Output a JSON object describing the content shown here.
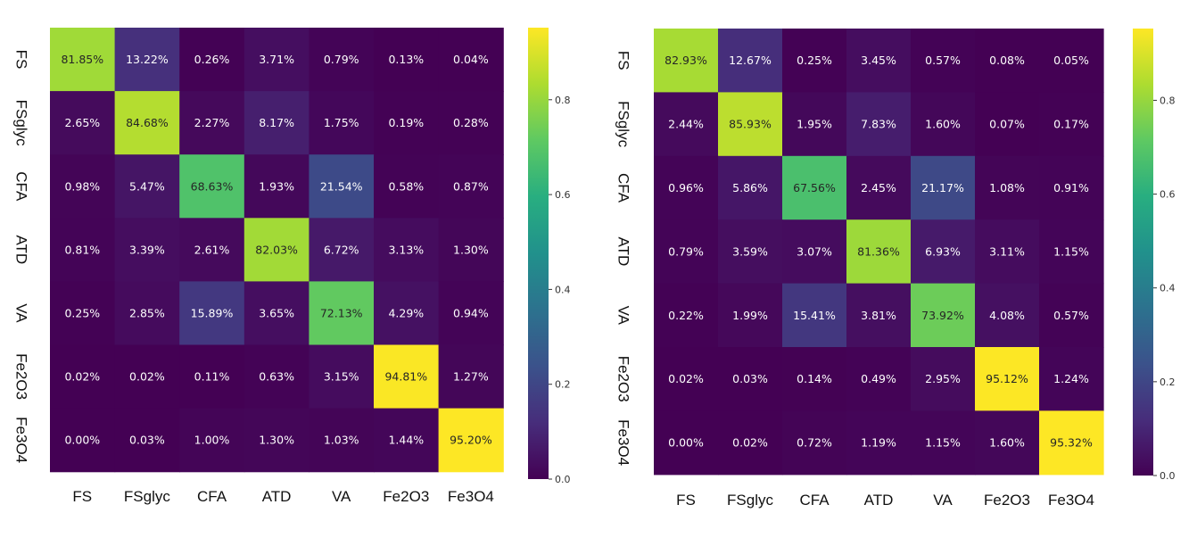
{
  "chart_data": [
    {
      "type": "heatmap",
      "categories": [
        "FS",
        "FSglyc",
        "CFA",
        "ATD",
        "VA",
        "Fe2O3",
        "Fe3O4"
      ],
      "values": [
        [
          81.85,
          13.22,
          0.26,
          3.71,
          0.79,
          0.13,
          0.04
        ],
        [
          2.65,
          84.68,
          2.27,
          8.17,
          1.75,
          0.19,
          0.28
        ],
        [
          0.98,
          5.47,
          68.63,
          1.93,
          21.54,
          0.58,
          0.87
        ],
        [
          0.81,
          3.39,
          2.61,
          82.03,
          6.72,
          3.13,
          1.3
        ],
        [
          0.25,
          2.85,
          15.89,
          3.65,
          72.13,
          4.29,
          0.94
        ],
        [
          0.02,
          0.02,
          0.11,
          0.63,
          3.15,
          94.81,
          1.27
        ],
        [
          0.0,
          0.03,
          1.0,
          1.3,
          1.03,
          1.44,
          95.2
        ]
      ],
      "cell_labels": [
        [
          "81.85%",
          "13.22%",
          "0.26%",
          "3.71%",
          "0.79%",
          "0.13%",
          "0.04%"
        ],
        [
          "2.65%",
          "84.68%",
          "2.27%",
          "8.17%",
          "1.75%",
          "0.19%",
          "0.28%"
        ],
        [
          "0.98%",
          "5.47%",
          "68.63%",
          "1.93%",
          "21.54%",
          "0.58%",
          "0.87%"
        ],
        [
          "0.81%",
          "3.39%",
          "2.61%",
          "82.03%",
          "6.72%",
          "3.13%",
          "1.30%"
        ],
        [
          "0.25%",
          "2.85%",
          "15.89%",
          "3.65%",
          "72.13%",
          "4.29%",
          "0.94%"
        ],
        [
          "0.02%",
          "0.02%",
          "0.11%",
          "0.63%",
          "3.15%",
          "94.81%",
          "1.27%"
        ],
        [
          "0.00%",
          "0.03%",
          "1.00%",
          "1.30%",
          "1.03%",
          "1.44%",
          "95.20%"
        ]
      ],
      "colormap": "viridis",
      "colorbar": {
        "range": [
          0,
          0.952
        ],
        "ticks": [
          0.0,
          0.2,
          0.4,
          0.6,
          0.8
        ],
        "tick_labels": [
          "0.0",
          "0.2",
          "0.4",
          "0.6",
          "0.8"
        ]
      }
    },
    {
      "type": "heatmap",
      "categories": [
        "FS",
        "FSglyc",
        "CFA",
        "ATD",
        "VA",
        "Fe2O3",
        "Fe3O4"
      ],
      "values": [
        [
          82.93,
          12.67,
          0.25,
          3.45,
          0.57,
          0.08,
          0.05
        ],
        [
          2.44,
          85.93,
          1.95,
          7.83,
          1.6,
          0.07,
          0.17
        ],
        [
          0.96,
          5.86,
          67.56,
          2.45,
          21.17,
          1.08,
          0.91
        ],
        [
          0.79,
          3.59,
          3.07,
          81.36,
          6.93,
          3.11,
          1.15
        ],
        [
          0.22,
          1.99,
          15.41,
          3.81,
          73.92,
          4.08,
          0.57
        ],
        [
          0.02,
          0.03,
          0.14,
          0.49,
          2.95,
          95.12,
          1.24
        ],
        [
          0.0,
          0.02,
          0.72,
          1.19,
          1.15,
          1.6,
          95.32
        ]
      ],
      "cell_labels": [
        [
          "82.93%",
          "12.67%",
          "0.25%",
          "3.45%",
          "0.57%",
          "0.08%",
          "0.05%"
        ],
        [
          "2.44%",
          "85.93%",
          "1.95%",
          "7.83%",
          "1.60%",
          "0.07%",
          "0.17%"
        ],
        [
          "0.96%",
          "5.86%",
          "67.56%",
          "2.45%",
          "21.17%",
          "1.08%",
          "0.91%"
        ],
        [
          "0.79%",
          "3.59%",
          "3.07%",
          "81.36%",
          "6.93%",
          "3.11%",
          "1.15%"
        ],
        [
          "0.22%",
          "1.99%",
          "15.41%",
          "3.81%",
          "73.92%",
          "4.08%",
          "0.57%"
        ],
        [
          "0.02%",
          "0.03%",
          "0.14%",
          "0.49%",
          "2.95%",
          "95.12%",
          "1.24%"
        ],
        [
          "0.00%",
          "0.02%",
          "0.72%",
          "1.19%",
          "1.15%",
          "1.60%",
          "95.32%"
        ]
      ],
      "colormap": "viridis",
      "colorbar": {
        "range": [
          0,
          0.953
        ],
        "ticks": [
          0.0,
          0.2,
          0.4,
          0.6,
          0.8
        ],
        "tick_labels": [
          "0.0",
          "0.2",
          "0.4",
          "0.6",
          "0.8"
        ]
      }
    }
  ]
}
